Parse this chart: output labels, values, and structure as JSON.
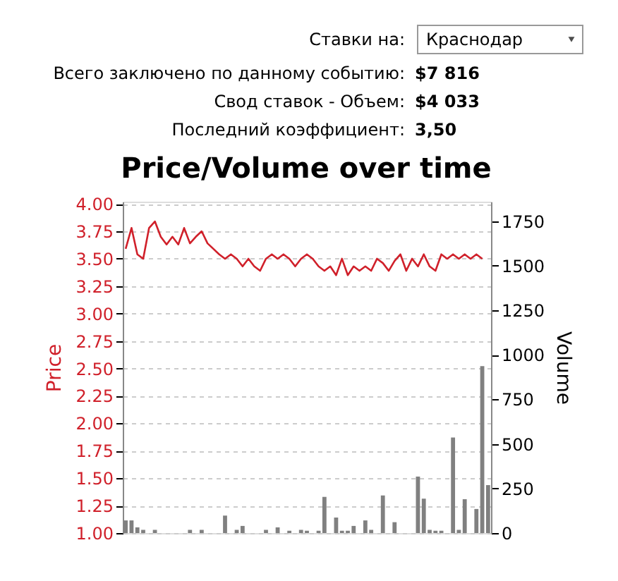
{
  "chart_data": {
    "type": "line",
    "title": "Price/Volume over time",
    "ylabel": "Price",
    "y2label": "Volume",
    "annotations": [
      "Ставки на:",
      "Краснодар",
      "Всего заключено по данному событию:",
      "$7 816",
      "Свод ставок - Объем:",
      "$4 033",
      "Последний коэффициент:",
      "3,50"
    ],
    "categories": [
      null,
      null,
      null,
      null,
      null,
      null,
      null,
      null,
      null,
      null,
      null,
      null,
      null,
      null,
      null,
      null,
      null,
      null,
      null,
      null,
      null,
      null,
      null,
      null,
      null,
      null,
      null,
      null,
      null,
      null,
      null,
      null,
      null,
      null,
      null,
      null,
      null,
      null,
      null,
      null,
      null,
      null,
      null,
      null,
      null,
      null,
      null,
      null,
      null,
      null,
      null,
      null,
      null,
      null,
      null,
      null,
      null,
      null,
      null,
      null,
      null,
      null,
      null
    ],
    "series": [
      {
        "type": "bar",
        "axis": "y2",
        "color": "#808080",
        "values": [
          71,
          71,
          32,
          18,
          null,
          18,
          null,
          null,
          null,
          null,
          null,
          18,
          null,
          18,
          null,
          null,
          null,
          98,
          null,
          18,
          40,
          null,
          null,
          null,
          18,
          null,
          32,
          null,
          13,
          null,
          18,
          13,
          null,
          13,
          203,
          null,
          87,
          13,
          13,
          40,
          null,
          71,
          18,
          null,
          211,
          null,
          61,
          null,
          null,
          null,
          317,
          193,
          18,
          13,
          13,
          null,
          536,
          18,
          190,
          null,
          135,
          937,
          269
        ]
      },
      {
        "color": "#d0202a",
        "values": [
          3.59,
          3.78,
          3.54,
          3.5,
          3.78,
          3.84,
          3.7,
          3.63,
          3.7,
          3.63,
          3.78,
          3.64,
          3.7,
          3.75,
          3.64,
          3.59,
          3.54,
          3.5,
          3.54,
          3.5,
          3.43,
          3.5,
          3.43,
          3.39,
          3.5,
          3.54,
          3.5,
          3.54,
          3.5,
          3.43,
          3.5,
          3.54,
          3.5,
          3.43,
          3.39,
          3.43,
          3.35,
          3.5,
          3.35,
          3.43,
          3.39,
          3.43,
          3.39,
          3.5,
          3.46,
          3.39,
          3.48,
          3.54,
          3.39,
          3.5,
          3.43,
          3.54,
          3.43,
          3.39,
          3.54,
          3.5,
          3.54,
          3.5,
          3.54,
          3.5,
          3.54,
          3.5,
          null
        ]
      }
    ],
    "ylim": [
      1,
      4.02
    ],
    "yticks": [
      {
        "value": 1,
        "label": "1.00"
      },
      {
        "value": 1.25,
        "label": "1.25"
      },
      {
        "value": 1.5,
        "label": "1.50"
      },
      {
        "value": 1.75,
        "label": "1.75"
      },
      {
        "value": 2,
        "label": "2.00"
      },
      {
        "value": 2.25,
        "label": "2.25"
      },
      {
        "value": 2.5,
        "label": "2.50"
      },
      {
        "value": 2.75,
        "label": "2.75"
      },
      {
        "value": 3,
        "label": "3.00"
      },
      {
        "value": 3.25,
        "label": "3.25"
      },
      {
        "value": 3.5,
        "label": "3.50"
      },
      {
        "value": 3.75,
        "label": "3.75"
      },
      {
        "value": 4,
        "label": "4.00"
      }
    ],
    "y2lim": [
      0,
      1860
    ],
    "y2ticks": [
      0,
      250,
      500,
      750,
      1000,
      1250,
      1500,
      1750
    ],
    "grid": "y"
  }
}
